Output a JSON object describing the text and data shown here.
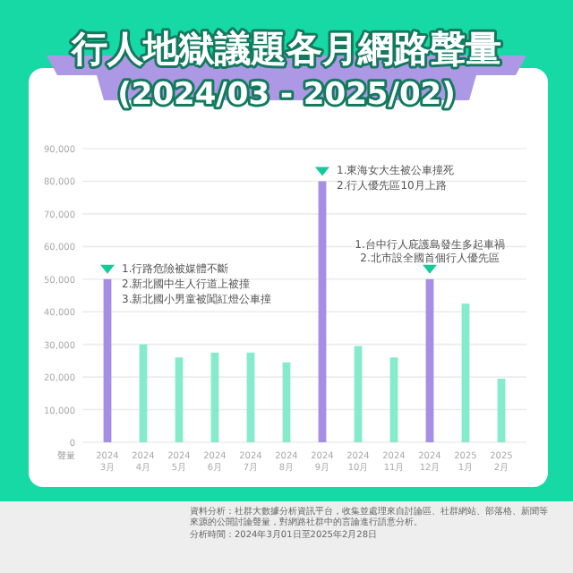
{
  "chart_data": {
    "type": "bar",
    "title": "行人地獄議題各月網路聲量",
    "subtitle": "(2024/03 - 2025/02)",
    "ylabel": "聲量",
    "categories": [
      "2024\n3月",
      "2024\n4月",
      "2024\n5月",
      "2024\n6月",
      "2024\n7月",
      "2024\n8月",
      "2024\n9月",
      "2024\n10月",
      "2024\n11月",
      "2024\n12月",
      "2025\n1月",
      "2025\n2月"
    ],
    "values": [
      50000,
      30000,
      26000,
      27500,
      27500,
      24500,
      80000,
      29500,
      26000,
      50000,
      42500,
      19500
    ],
    "colors": [
      "#a58ee3",
      "#86ebcc",
      "#86ebcc",
      "#86ebcc",
      "#86ebcc",
      "#86ebcc",
      "#a58ee3",
      "#86ebcc",
      "#86ebcc",
      "#a58ee3",
      "#86ebcc",
      "#86ebcc"
    ],
    "ylim": [
      0,
      90000
    ],
    "yticks": [
      0,
      {
        "value": 10000,
        "label": "10,000"
      },
      {
        "value": 20000,
        "label": "20,000"
      },
      {
        "value": 30000,
        "label": "30,000"
      },
      {
        "value": 40000,
        "label": "40,000"
      },
      {
        "value": 50000,
        "label": "50,000"
      },
      {
        "value": 60000,
        "label": "60,000"
      },
      {
        "value": 70000,
        "label": "70,000"
      },
      {
        "value": 80000,
        "label": "80,000"
      },
      {
        "value": 90000,
        "label": "90,000"
      }
    ],
    "grid": "y",
    "annotations": [
      {
        "text": "1.行路危險被媒體不斷",
        "x": "2024\n3月",
        "y": 50000
      },
      {
        "text": "2.新北國中生人行道上被撞",
        "x": "2024\n3月",
        "y": 50000
      },
      {
        "text": "3.新北國小男童被闖紅燈公車撞",
        "x": "2024\n3月",
        "y": 50000
      },
      {
        "text": "1.東海女大生被公車撞死",
        "x": "2024\n9月",
        "y": 80000
      },
      {
        "text": "2.行人優先區10月上路",
        "x": "2024\n9月",
        "y": 80000
      },
      {
        "text": "1.台中行人庇護島發生多起車禍",
        "x": "2024\n12月",
        "y": 50000
      },
      {
        "text": "2.北市設全國首個行人優先區",
        "x": "2024\n12月",
        "y": 50000
      },
      "資料分析：社群大數據分析資訊平台，收集並處理來自討論區、社群網站、部落格、新聞等來源的公開討論聲量，對網路社群中的言論進行語意分析。",
      "分析時間：2024年3月01日至2025年2月28日"
    ]
  }
}
